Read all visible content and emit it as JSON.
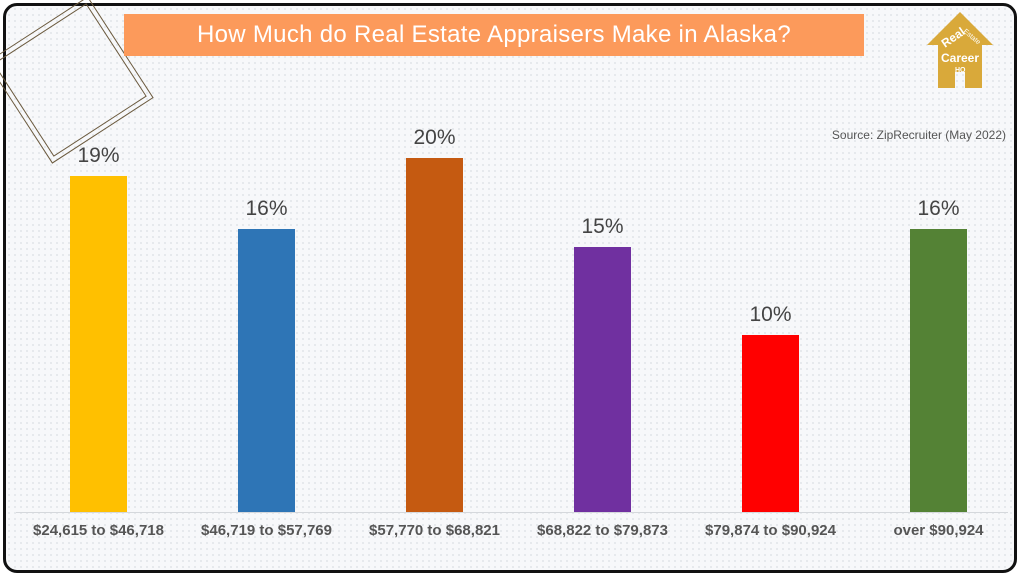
{
  "title": "How Much do Real Estate Appraisers Make in Alaska?",
  "source": "Source: ZipRecruiter (May 2022)",
  "logo": {
    "line1": "Real",
    "line2": "Estate",
    "line3": "Career",
    "line4": "HQ",
    "color": "#d9a93a"
  },
  "colors": {
    "title_bg": "#fc9a5b",
    "frame": "#111111"
  },
  "bars": [
    {
      "label": "$24,615 to $46,718",
      "value_label": "19%",
      "color": "#ffc000"
    },
    {
      "label": "$46,719 to $57,769",
      "value_label": "16%",
      "color": "#2e75b6"
    },
    {
      "label": "$57,770 to $68,821",
      "value_label": "20%",
      "color": "#c55a11"
    },
    {
      "label": "$68,822 to $79,873",
      "value_label": "15%",
      "color": "#7030a0"
    },
    {
      "label": "$79,874 to $90,924",
      "value_label": "10%",
      "color": "#ff0000"
    },
    {
      "label": "over $90,924",
      "value_label": "16%",
      "color": "#548235"
    }
  ],
  "chart_data": {
    "type": "bar",
    "title": "How Much do Real Estate Appraisers Make in Alaska?",
    "subtitle": "Source: ZipRecruiter (May 2022)",
    "categories": [
      "$24,615 to $46,718",
      "$46,719 to $57,769",
      "$57,770 to $68,821",
      "$68,822 to $79,873",
      "$79,874 to $90,924",
      "over $90,924"
    ],
    "values": [
      19,
      16,
      20,
      15,
      10,
      16
    ],
    "unit": "%",
    "xlabel": "",
    "ylabel": "",
    "ylim": [
      0,
      20
    ],
    "grid": false,
    "legend": "none",
    "data_labels": true
  }
}
